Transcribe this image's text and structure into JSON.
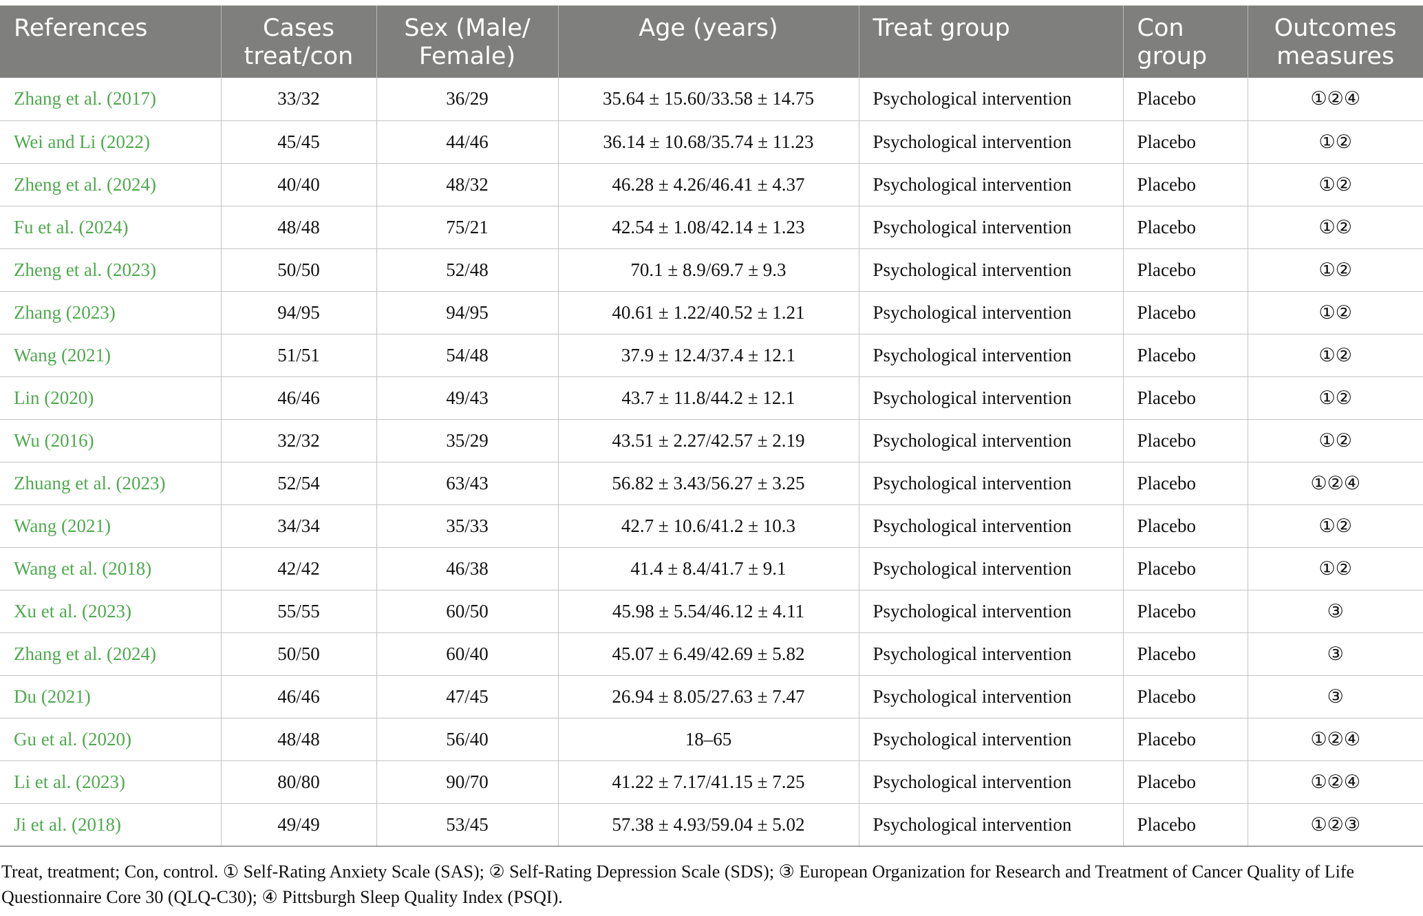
{
  "headers": [
    "References",
    "Cases treat/con",
    "Sex (Male/ Female)",
    "Age (years)",
    "Treat group",
    "Con group",
    "Outcomes measures"
  ],
  "rows": [
    {
      "ref": "Zhang et al. (2017)",
      "cases": "33/32",
      "sex": "36/29",
      "age": "35.64 ± 15.60/33.58 ± 14.75",
      "treat": "Psychological intervention",
      "con": "Placebo",
      "outcomes": "①②④"
    },
    {
      "ref": "Wei and Li (2022)",
      "cases": "45/45",
      "sex": "44/46",
      "age": "36.14 ± 10.68/35.74 ± 11.23",
      "treat": "Psychological intervention",
      "con": "Placebo",
      "outcomes": "①②"
    },
    {
      "ref": "Zheng et al. (2024)",
      "cases": "40/40",
      "sex": "48/32",
      "age": "46.28 ± 4.26/46.41 ± 4.37",
      "treat": "Psychological intervention",
      "con": "Placebo",
      "outcomes": "①②"
    },
    {
      "ref": "Fu et al. (2024)",
      "cases": "48/48",
      "sex": "75/21",
      "age": "42.54 ± 1.08/42.14 ± 1.23",
      "treat": "Psychological intervention",
      "con": "Placebo",
      "outcomes": "①②"
    },
    {
      "ref": "Zheng et al. (2023)",
      "cases": "50/50",
      "sex": "52/48",
      "age": "70.1 ± 8.9/69.7 ± 9.3",
      "treat": "Psychological intervention",
      "con": "Placebo",
      "outcomes": "①②"
    },
    {
      "ref": "Zhang (2023)",
      "cases": "94/95",
      "sex": "94/95",
      "age": "40.61 ± 1.22/40.52 ± 1.21",
      "treat": "Psychological intervention",
      "con": "Placebo",
      "outcomes": "①②"
    },
    {
      "ref": "Wang (2021)",
      "cases": "51/51",
      "sex": "54/48",
      "age": "37.9 ± 12.4/37.4 ± 12.1",
      "treat": "Psychological intervention",
      "con": "Placebo",
      "outcomes": "①②"
    },
    {
      "ref": "Lin (2020)",
      "cases": "46/46",
      "sex": "49/43",
      "age": "43.7 ± 11.8/44.2 ± 12.1",
      "treat": "Psychological intervention",
      "con": "Placebo",
      "outcomes": "①②"
    },
    {
      "ref": "Wu (2016)",
      "cases": "32/32",
      "sex": "35/29",
      "age": "43.51 ± 2.27/42.57 ± 2.19",
      "treat": "Psychological intervention",
      "con": "Placebo",
      "outcomes": "①②"
    },
    {
      "ref": "Zhuang et al. (2023)",
      "cases": "52/54",
      "sex": "63/43",
      "age": "56.82 ± 3.43/56.27 ± 3.25",
      "treat": "Psychological intervention",
      "con": "Placebo",
      "outcomes": "①②④"
    },
    {
      "ref": "Wang (2021)",
      "cases": "34/34",
      "sex": "35/33",
      "age": "42.7 ± 10.6/41.2 ± 10.3",
      "treat": "Psychological intervention",
      "con": "Placebo",
      "outcomes": "①②"
    },
    {
      "ref": "Wang et al. (2018)",
      "cases": "42/42",
      "sex": "46/38",
      "age": "41.4 ± 8.4/41.7 ± 9.1",
      "treat": "Psychological intervention",
      "con": "Placebo",
      "outcomes": "①②"
    },
    {
      "ref": "Xu et al. (2023)",
      "cases": "55/55",
      "sex": "60/50",
      "age": "45.98 ± 5.54/46.12 ± 4.11",
      "treat": "Psychological intervention",
      "con": "Placebo",
      "outcomes": "③"
    },
    {
      "ref": "Zhang et al. (2024)",
      "cases": "50/50",
      "sex": "60/40",
      "age": "45.07 ± 6.49/42.69 ± 5.82",
      "treat": "Psychological intervention",
      "con": "Placebo",
      "outcomes": "③"
    },
    {
      "ref": "Du (2021)",
      "cases": "46/46",
      "sex": "47/45",
      "age": "26.94 ± 8.05/27.63 ± 7.47",
      "treat": "Psychological intervention",
      "con": "Placebo",
      "outcomes": "③"
    },
    {
      "ref": "Gu et al. (2020)",
      "cases": "48/48",
      "sex": "56/40",
      "age": "18–65",
      "treat": "Psychological intervention",
      "con": "Placebo",
      "outcomes": "①②④"
    },
    {
      "ref": "Li et al. (2023)",
      "cases": "80/80",
      "sex": "90/70",
      "age": "41.22 ± 7.17/41.15 ± 7.25",
      "treat": "Psychological intervention",
      "con": "Placebo",
      "outcomes": "①②④"
    },
    {
      "ref": "Ji et al. (2018)",
      "cases": "49/49",
      "sex": "53/45",
      "age": "57.38 ± 4.93/59.04 ± 5.02",
      "treat": "Psychological intervention",
      "con": "Placebo",
      "outcomes": "①②③"
    }
  ],
  "footnote": "Treat, treatment; Con, control. ① Self-Rating Anxiety Scale (SAS); ② Self-Rating Depression Scale (SDS); ③ European Organization for Research and Treatment of Cancer Quality of Life Questionnaire Core 30 (QLQ-C30); ④ Pittsburgh Sleep Quality Index (PSQI).",
  "colors": {
    "header_bg": "#7f7f7e",
    "reference_link": "#4fa94f"
  }
}
